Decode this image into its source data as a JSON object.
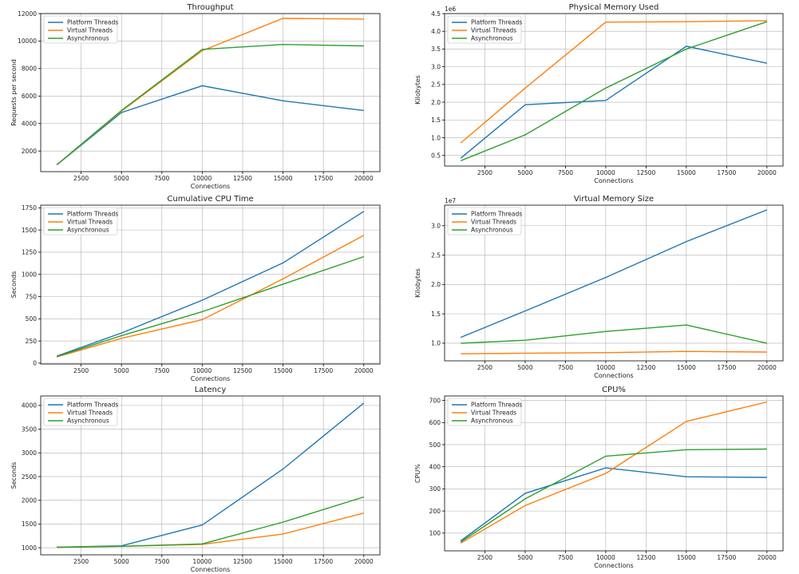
{
  "chart_data": [
    {
      "type": "line",
      "title": "Throughput",
      "xlabel": "Connections",
      "ylabel": "Requests per second",
      "offset_text": "",
      "x": [
        1000,
        5000,
        10000,
        15000,
        20000
      ],
      "xlim": [
        0,
        21000
      ],
      "ylim": [
        500,
        12000
      ],
      "xticks": [
        2500,
        5000,
        7500,
        10000,
        12500,
        15000,
        17500,
        20000
      ],
      "xtick_labels": [
        "2500",
        "5000",
        "7500",
        "10000",
        "12500",
        "15000",
        "17500",
        "20000"
      ],
      "yticks": [
        2000,
        4000,
        6000,
        8000,
        10000,
        12000
      ],
      "ytick_labels": [
        "2000",
        "4000",
        "6000",
        "8000",
        "10000",
        "12000"
      ],
      "grid": true,
      "legend": "top-left",
      "series": [
        {
          "name": "Platform Threads",
          "color": "#1f77b4",
          "values": [
            1000,
            4800,
            6750,
            5650,
            4950
          ]
        },
        {
          "name": "Virtual Threads",
          "color": "#ff7f0e",
          "values": [
            1000,
            4900,
            9300,
            11650,
            11600
          ]
        },
        {
          "name": "Asynchronous",
          "color": "#2ca02c",
          "values": [
            1000,
            4950,
            9400,
            9750,
            9650
          ]
        }
      ]
    },
    {
      "type": "line",
      "title": "Physical Memory Used",
      "xlabel": "Connections",
      "ylabel": "Kilobytes",
      "offset_text": "1e6",
      "x": [
        1000,
        5000,
        10000,
        15000,
        20000
      ],
      "xlim": [
        0,
        21000
      ],
      "ylim": [
        0.2,
        4.5
      ],
      "xticks": [
        2500,
        5000,
        7500,
        10000,
        12500,
        15000,
        17500,
        20000
      ],
      "xtick_labels": [
        "2500",
        "5000",
        "7500",
        "10000",
        "12500",
        "15000",
        "17500",
        "20000"
      ],
      "yticks": [
        0.5,
        1.0,
        1.5,
        2.0,
        2.5,
        3.0,
        3.5,
        4.0,
        4.5
      ],
      "ytick_labels": [
        "0.5",
        "1.0",
        "1.5",
        "2.0",
        "2.5",
        "3.0",
        "3.5",
        "4.0",
        "4.5"
      ],
      "grid": true,
      "legend": "top-left",
      "series": [
        {
          "name": "Platform Threads",
          "color": "#1f77b4",
          "values": [
            0.42,
            1.93,
            2.05,
            3.58,
            3.1
          ]
        },
        {
          "name": "Virtual Threads",
          "color": "#ff7f0e",
          "values": [
            0.85,
            2.4,
            4.26,
            4.27,
            4.3
          ]
        },
        {
          "name": "Asynchronous",
          "color": "#2ca02c",
          "values": [
            0.35,
            1.08,
            2.4,
            3.5,
            4.27
          ]
        }
      ]
    },
    {
      "type": "line",
      "title": "Cumulative CPU Time",
      "xlabel": "Connections",
      "ylabel": "Seconds",
      "offset_text": "",
      "x": [
        1000,
        5000,
        10000,
        15000,
        20000
      ],
      "xlim": [
        0,
        21000
      ],
      "ylim": [
        -10,
        1780
      ],
      "xticks": [
        2500,
        5000,
        7500,
        10000,
        12500,
        15000,
        17500,
        20000
      ],
      "xtick_labels": [
        "2500",
        "5000",
        "7500",
        "10000",
        "12500",
        "15000",
        "17500",
        "20000"
      ],
      "yticks": [
        0,
        250,
        500,
        750,
        1000,
        1250,
        1500,
        1750
      ],
      "ytick_labels": [
        "0",
        "250",
        "500",
        "750",
        "1000",
        "1250",
        "1500",
        "1750"
      ],
      "grid": true,
      "legend": "top-left",
      "series": [
        {
          "name": "Platform Threads",
          "color": "#1f77b4",
          "values": [
            80,
            340,
            710,
            1130,
            1710
          ]
        },
        {
          "name": "Virtual Threads",
          "color": "#ff7f0e",
          "values": [
            70,
            280,
            490,
            950,
            1440
          ]
        },
        {
          "name": "Asynchronous",
          "color": "#2ca02c",
          "values": [
            75,
            310,
            580,
            890,
            1200
          ]
        }
      ]
    },
    {
      "type": "line",
      "title": "Virtual Memory Size",
      "xlabel": "Connections",
      "ylabel": "Kilobytes",
      "offset_text": "1e7",
      "x": [
        1000,
        5000,
        10000,
        15000,
        20000
      ],
      "xlim": [
        0,
        21000
      ],
      "ylim": [
        0.7,
        3.35
      ],
      "xticks": [
        2500,
        5000,
        7500,
        10000,
        12500,
        15000,
        17500,
        20000
      ],
      "xtick_labels": [
        "2500",
        "5000",
        "7500",
        "10000",
        "12500",
        "15000",
        "17500",
        "20000"
      ],
      "yticks": [
        1.0,
        1.5,
        2.0,
        2.5,
        3.0
      ],
      "ytick_labels": [
        "1.0",
        "1.5",
        "2.0",
        "2.5",
        "3.0"
      ],
      "grid": true,
      "legend": "top-left",
      "series": [
        {
          "name": "Platform Threads",
          "color": "#1f77b4",
          "values": [
            1.1,
            1.55,
            2.12,
            2.73,
            3.27
          ]
        },
        {
          "name": "Virtual Threads",
          "color": "#ff7f0e",
          "values": [
            0.82,
            0.83,
            0.84,
            0.86,
            0.85
          ]
        },
        {
          "name": "Asynchronous",
          "color": "#2ca02c",
          "values": [
            1.0,
            1.05,
            1.2,
            1.31,
            1.0
          ]
        }
      ]
    },
    {
      "type": "line",
      "title": "Latency",
      "xlabel": "Connections",
      "ylabel": "Seconds",
      "offset_text": "",
      "x": [
        1000,
        5000,
        10000,
        15000,
        20000
      ],
      "xlim": [
        0,
        21000
      ],
      "ylim": [
        850,
        4200
      ],
      "xticks": [
        2500,
        5000,
        7500,
        10000,
        12500,
        15000,
        17500,
        20000
      ],
      "xtick_labels": [
        "2500",
        "5000",
        "7500",
        "10000",
        "12500",
        "15000",
        "17500",
        "20000"
      ],
      "yticks": [
        1000,
        1500,
        2000,
        2500,
        3000,
        3500,
        4000
      ],
      "ytick_labels": [
        "1000",
        "1500",
        "2000",
        "2500",
        "3000",
        "3500",
        "4000"
      ],
      "grid": true,
      "legend": "top-left",
      "series": [
        {
          "name": "Platform Threads",
          "color": "#1f77b4",
          "values": [
            1010,
            1040,
            1480,
            2660,
            4050
          ]
        },
        {
          "name": "Virtual Threads",
          "color": "#ff7f0e",
          "values": [
            1010,
            1030,
            1070,
            1290,
            1730
          ]
        },
        {
          "name": "Asynchronous",
          "color": "#2ca02c",
          "values": [
            1010,
            1030,
            1080,
            1540,
            2070
          ]
        }
      ]
    },
    {
      "type": "line",
      "title": "CPU%",
      "xlabel": "Connections",
      "ylabel": "CPU%",
      "offset_text": "",
      "x": [
        1000,
        5000,
        10000,
        15000,
        20000
      ],
      "xlim": [
        0,
        21000
      ],
      "ylim": [
        20,
        720
      ],
      "xticks": [
        2500,
        5000,
        7500,
        10000,
        12500,
        15000,
        17500,
        20000
      ],
      "xtick_labels": [
        "2500",
        "5000",
        "7500",
        "10000",
        "12500",
        "15000",
        "17500",
        "20000"
      ],
      "yticks": [
        100,
        200,
        300,
        400,
        500,
        600,
        700
      ],
      "ytick_labels": [
        "100",
        "200",
        "300",
        "400",
        "500",
        "600",
        "700"
      ],
      "grid": true,
      "legend": "top-left",
      "series": [
        {
          "name": "Platform Threads",
          "color": "#1f77b4",
          "values": [
            65,
            280,
            395,
            355,
            352
          ]
        },
        {
          "name": "Virtual Threads",
          "color": "#ff7f0e",
          "values": [
            55,
            225,
            370,
            605,
            693
          ]
        },
        {
          "name": "Asynchronous",
          "color": "#2ca02c",
          "values": [
            60,
            255,
            448,
            477,
            480
          ]
        }
      ]
    }
  ]
}
